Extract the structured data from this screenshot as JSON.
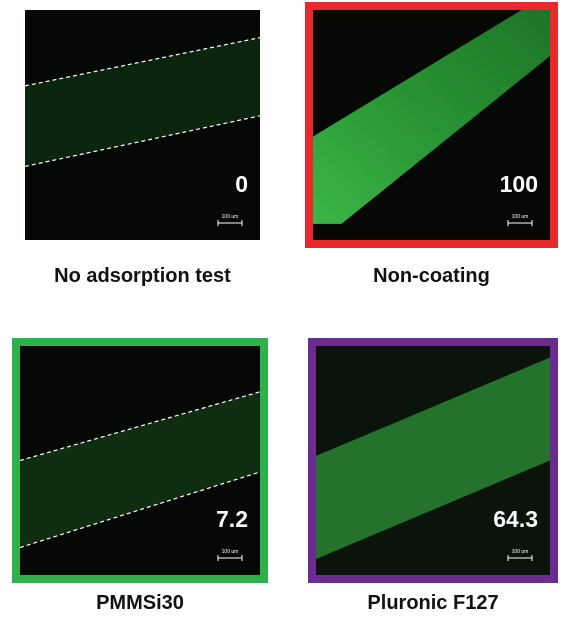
{
  "panels": [
    {
      "label": "No adsorption test",
      "value": 0,
      "scale_bar": "100 um",
      "border": null
    },
    {
      "label": "Non-coating",
      "value": 100,
      "scale_bar": "100 um",
      "border": "#e8282b"
    },
    {
      "label": "PMMSi30",
      "value": 7.2,
      "scale_bar": "100 um",
      "border": "#2eb04a"
    },
    {
      "label": "Pluronic F127",
      "value": 64.3,
      "scale_bar": "100 um",
      "border": "#6a2c91"
    }
  ]
}
